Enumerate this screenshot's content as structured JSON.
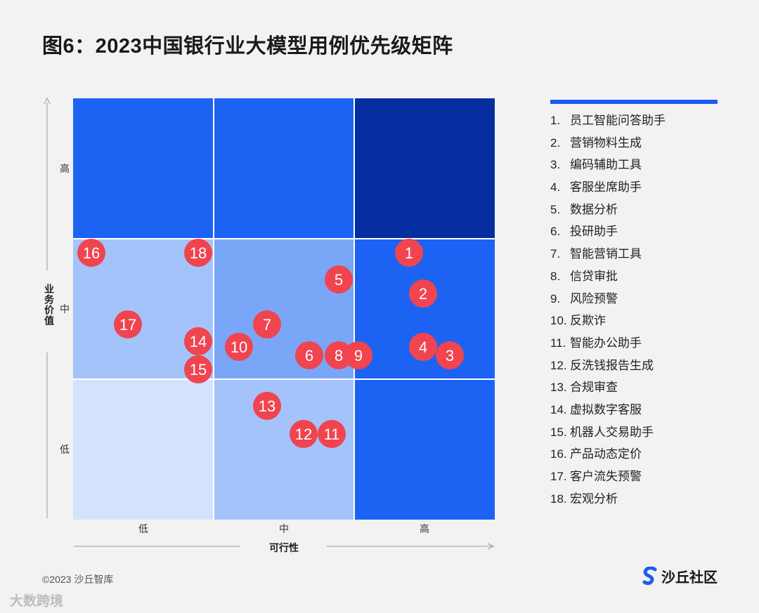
{
  "title": "图6：2023中国银行业大模型用例优先级矩阵",
  "chart_data": {
    "type": "scatter",
    "xlabel": "可行性",
    "ylabel": "业务价值",
    "x_ticks": [
      "低",
      "中",
      "高"
    ],
    "y_ticks": [
      "低",
      "中",
      "高"
    ],
    "xlim": [
      0,
      3
    ],
    "ylim": [
      0,
      3
    ],
    "cell_colors": {
      "low_low": "#d4e2fd",
      "mid_low": "#a5c3fb",
      "high_low": "#1c63f4",
      "low_mid": "#a5c3fb",
      "mid_mid": "#7aa6f8",
      "high_mid": "#1c63f4",
      "low_high": "#1c63f4",
      "mid_high": "#1c63f4",
      "high_high": "#052fa0"
    },
    "marker_color": "#f0444f",
    "points": [
      {
        "label": "1",
        "x": 2.39,
        "y": 1.9
      },
      {
        "label": "2",
        "x": 2.49,
        "y": 1.61
      },
      {
        "label": "3",
        "x": 2.68,
        "y": 1.17
      },
      {
        "label": "4",
        "x": 2.49,
        "y": 1.23
      },
      {
        "label": "5",
        "x": 1.89,
        "y": 1.71
      },
      {
        "label": "6",
        "x": 1.68,
        "y": 1.17
      },
      {
        "label": "7",
        "x": 1.38,
        "y": 1.39
      },
      {
        "label": "8",
        "x": 1.89,
        "y": 1.17
      },
      {
        "label": "9",
        "x": 2.03,
        "y": 1.17
      },
      {
        "label": "10",
        "x": 1.18,
        "y": 1.23
      },
      {
        "label": "11",
        "x": 1.84,
        "y": 0.61
      },
      {
        "label": "12",
        "x": 1.64,
        "y": 0.61
      },
      {
        "label": "13",
        "x": 1.38,
        "y": 0.81
      },
      {
        "label": "14",
        "x": 0.89,
        "y": 1.27
      },
      {
        "label": "15",
        "x": 0.89,
        "y": 1.07
      },
      {
        "label": "16",
        "x": 0.13,
        "y": 1.9
      },
      {
        "label": "17",
        "x": 0.39,
        "y": 1.39
      },
      {
        "label": "18",
        "x": 0.89,
        "y": 1.9
      }
    ]
  },
  "legend": [
    {
      "num": "1.",
      "text": "员工智能问答助手"
    },
    {
      "num": "2.",
      "text": "营销物料生成"
    },
    {
      "num": "3.",
      "text": "编码辅助工具"
    },
    {
      "num": "4.",
      "text": "客服坐席助手"
    },
    {
      "num": "5.",
      "text": "数据分析"
    },
    {
      "num": "6.",
      "text": "投研助手"
    },
    {
      "num": "7.",
      "text": "智能营销工具"
    },
    {
      "num": "8.",
      "text": "信贷审批"
    },
    {
      "num": "9.",
      "text": "风险预警"
    },
    {
      "num": "10.",
      "text": "反欺诈"
    },
    {
      "num": "11.",
      "text": "智能办公助手"
    },
    {
      "num": "12.",
      "text": "反洗钱报告生成"
    },
    {
      "num": "13.",
      "text": "合规审查"
    },
    {
      "num": "14.",
      "text": "虚拟数字客服"
    },
    {
      "num": "15.",
      "text": "机器人交易助手"
    },
    {
      "num": "16.",
      "text": "产品动态定价"
    },
    {
      "num": "17.",
      "text": "客户流失预警"
    },
    {
      "num": "18.",
      "text": "宏观分析"
    }
  ],
  "footer": {
    "copyright": "©2023 沙丘智库",
    "watermark": "大数跨境",
    "brand": "沙丘社区"
  },
  "colors": {
    "accent": "#1b5cf2",
    "axis": "#9a9a9a"
  }
}
